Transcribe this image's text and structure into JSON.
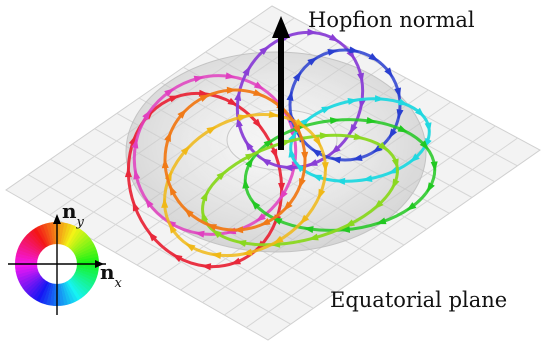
{
  "labels": {
    "hopfion_normal": "Hopfion normal",
    "equatorial_plane": "Equatorial plane"
  },
  "color_wheel": {
    "y_axis_symbol": "n",
    "y_axis_subscript": "y",
    "x_axis_symbol": "n",
    "x_axis_subscript": "x"
  },
  "colors": {
    "ring_red": "#e8283a",
    "ring_magenta": "#e040c0",
    "ring_purple": "#8a3fd6",
    "ring_blue": "#2a3fd0",
    "ring_cyan": "#20d8e0",
    "ring_green": "#22c822",
    "ring_lime": "#8ad820",
    "ring_yellow": "#f0b818",
    "ring_orange": "#f07a18",
    "normal_arrow": "#000000",
    "grid_line": "#d4d4d4",
    "plane_fill": "#f2f2f2"
  }
}
